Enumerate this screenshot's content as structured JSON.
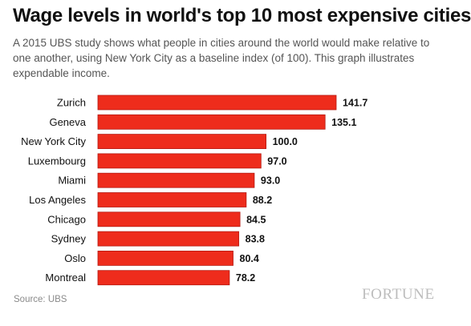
{
  "title": "Wage levels in world's top 10 most expensive cities",
  "subtitle": "A 2015 UBS study shows what people in cities around the world would make relative to one another, using New York City as a baseline index (of 100). This graph illustrates expendable income.",
  "source": "Source: UBS",
  "brand": "FORTUNE",
  "colors": {
    "bar": "#ee2c1c",
    "bar_edge": "#b51a12",
    "text": "#111111",
    "muted": "#8a8a8a"
  },
  "chart_data": {
    "type": "bar",
    "orientation": "horizontal",
    "categories": [
      "Zurich",
      "Geneva",
      "New York City",
      "Luxembourg",
      "Miami",
      "Los Angeles",
      "Chicago",
      "Sydney",
      "Oslo",
      "Montreal"
    ],
    "values": [
      141.7,
      135.1,
      100.0,
      97.0,
      93.0,
      88.2,
      84.5,
      83.8,
      80.4,
      78.2
    ],
    "value_labels": [
      "141.7",
      "135.1",
      "100.0",
      "97.0",
      "93.0",
      "88.2",
      "84.5",
      "83.8",
      "80.4",
      "78.2"
    ],
    "xlim": [
      0,
      141.7
    ],
    "grid": false,
    "legend": "none"
  }
}
